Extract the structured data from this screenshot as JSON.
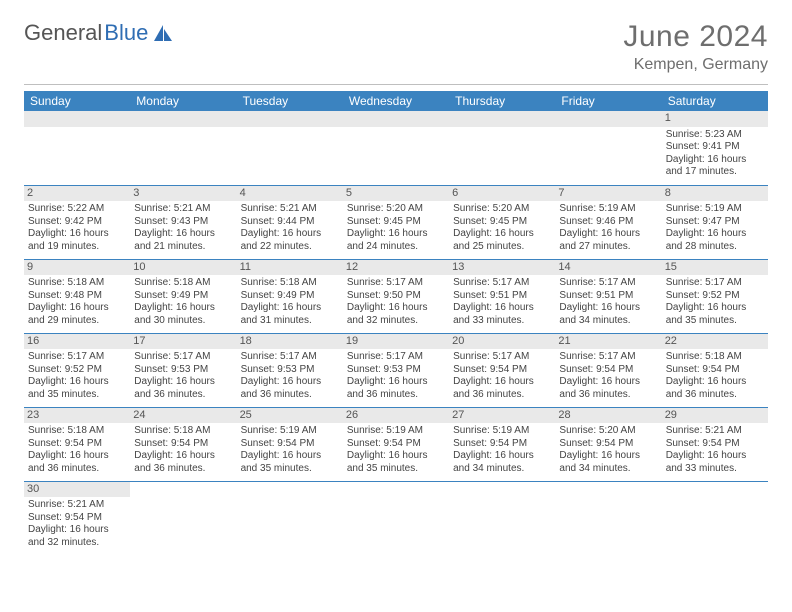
{
  "brand": {
    "part1": "General",
    "part2": "Blue"
  },
  "title": "June 2024",
  "location": "Kempen, Germany",
  "colors": {
    "header_bg": "#3b83c0",
    "header_text": "#ffffff",
    "row_divider": "#3b83c0",
    "daynum_bg": "#e9e9e9",
    "text": "#444444",
    "title_color": "#6e6e6e"
  },
  "weekdays": [
    "Sunday",
    "Monday",
    "Tuesday",
    "Wednesday",
    "Thursday",
    "Friday",
    "Saturday"
  ],
  "first_weekday": 6,
  "days_in_month": 30,
  "days": {
    "1": {
      "sunrise": "5:23 AM",
      "sunset": "9:41 PM",
      "daylight": "16 hours and 17 minutes."
    },
    "2": {
      "sunrise": "5:22 AM",
      "sunset": "9:42 PM",
      "daylight": "16 hours and 19 minutes."
    },
    "3": {
      "sunrise": "5:21 AM",
      "sunset": "9:43 PM",
      "daylight": "16 hours and 21 minutes."
    },
    "4": {
      "sunrise": "5:21 AM",
      "sunset": "9:44 PM",
      "daylight": "16 hours and 22 minutes."
    },
    "5": {
      "sunrise": "5:20 AM",
      "sunset": "9:45 PM",
      "daylight": "16 hours and 24 minutes."
    },
    "6": {
      "sunrise": "5:20 AM",
      "sunset": "9:45 PM",
      "daylight": "16 hours and 25 minutes."
    },
    "7": {
      "sunrise": "5:19 AM",
      "sunset": "9:46 PM",
      "daylight": "16 hours and 27 minutes."
    },
    "8": {
      "sunrise": "5:19 AM",
      "sunset": "9:47 PM",
      "daylight": "16 hours and 28 minutes."
    },
    "9": {
      "sunrise": "5:18 AM",
      "sunset": "9:48 PM",
      "daylight": "16 hours and 29 minutes."
    },
    "10": {
      "sunrise": "5:18 AM",
      "sunset": "9:49 PM",
      "daylight": "16 hours and 30 minutes."
    },
    "11": {
      "sunrise": "5:18 AM",
      "sunset": "9:49 PM",
      "daylight": "16 hours and 31 minutes."
    },
    "12": {
      "sunrise": "5:17 AM",
      "sunset": "9:50 PM",
      "daylight": "16 hours and 32 minutes."
    },
    "13": {
      "sunrise": "5:17 AM",
      "sunset": "9:51 PM",
      "daylight": "16 hours and 33 minutes."
    },
    "14": {
      "sunrise": "5:17 AM",
      "sunset": "9:51 PM",
      "daylight": "16 hours and 34 minutes."
    },
    "15": {
      "sunrise": "5:17 AM",
      "sunset": "9:52 PM",
      "daylight": "16 hours and 35 minutes."
    },
    "16": {
      "sunrise": "5:17 AM",
      "sunset": "9:52 PM",
      "daylight": "16 hours and 35 minutes."
    },
    "17": {
      "sunrise": "5:17 AM",
      "sunset": "9:53 PM",
      "daylight": "16 hours and 36 minutes."
    },
    "18": {
      "sunrise": "5:17 AM",
      "sunset": "9:53 PM",
      "daylight": "16 hours and 36 minutes."
    },
    "19": {
      "sunrise": "5:17 AM",
      "sunset": "9:53 PM",
      "daylight": "16 hours and 36 minutes."
    },
    "20": {
      "sunrise": "5:17 AM",
      "sunset": "9:54 PM",
      "daylight": "16 hours and 36 minutes."
    },
    "21": {
      "sunrise": "5:17 AM",
      "sunset": "9:54 PM",
      "daylight": "16 hours and 36 minutes."
    },
    "22": {
      "sunrise": "5:18 AM",
      "sunset": "9:54 PM",
      "daylight": "16 hours and 36 minutes."
    },
    "23": {
      "sunrise": "5:18 AM",
      "sunset": "9:54 PM",
      "daylight": "16 hours and 36 minutes."
    },
    "24": {
      "sunrise": "5:18 AM",
      "sunset": "9:54 PM",
      "daylight": "16 hours and 36 minutes."
    },
    "25": {
      "sunrise": "5:19 AM",
      "sunset": "9:54 PM",
      "daylight": "16 hours and 35 minutes."
    },
    "26": {
      "sunrise": "5:19 AM",
      "sunset": "9:54 PM",
      "daylight": "16 hours and 35 minutes."
    },
    "27": {
      "sunrise": "5:19 AM",
      "sunset": "9:54 PM",
      "daylight": "16 hours and 34 minutes."
    },
    "28": {
      "sunrise": "5:20 AM",
      "sunset": "9:54 PM",
      "daylight": "16 hours and 34 minutes."
    },
    "29": {
      "sunrise": "5:21 AM",
      "sunset": "9:54 PM",
      "daylight": "16 hours and 33 minutes."
    },
    "30": {
      "sunrise": "5:21 AM",
      "sunset": "9:54 PM",
      "daylight": "16 hours and 32 minutes."
    }
  },
  "labels": {
    "sunrise_prefix": "Sunrise: ",
    "sunset_prefix": "Sunset: ",
    "daylight_prefix": "Daylight: "
  }
}
